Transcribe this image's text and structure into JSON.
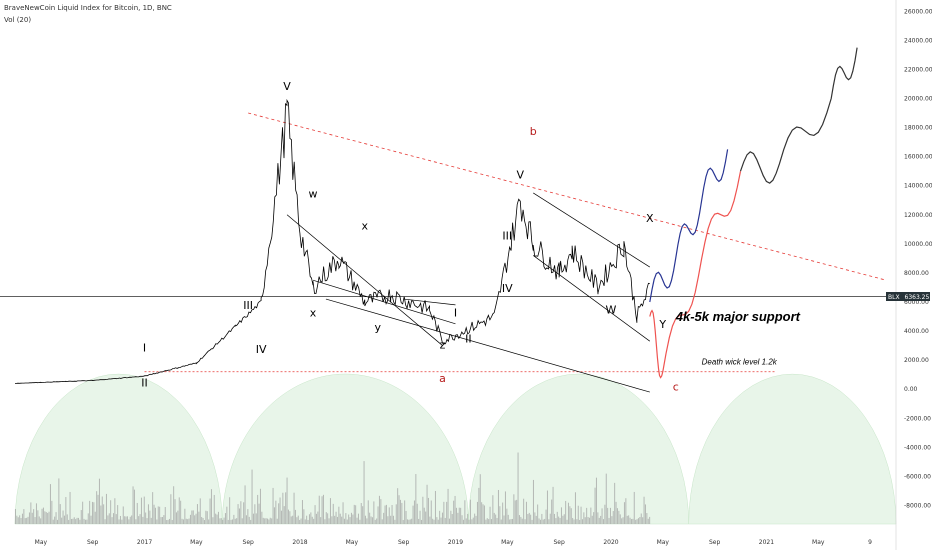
{
  "header": {
    "title": "BraveNewCoin Liquid Index for Bitcoin, 1D, BNC",
    "indicator": "Vol (20)"
  },
  "price_badge": {
    "symbol": "BLX",
    "value": "6363.25"
  },
  "chart_data": {
    "type": "line",
    "title": "BraveNewCoin Liquid Index for Bitcoin, 1D, BNC",
    "y_ticks": [
      "26000.00",
      "24000.00",
      "22000.00",
      "20000.00",
      "18000.00",
      "16000.00",
      "14000.00",
      "12000.00",
      "10000.00",
      "8000.00",
      "6000.00",
      "4000.00",
      "2000.00",
      "0.00",
      "-2000.00",
      "-4000.00",
      "-6000.00",
      "-8000.00"
    ],
    "x_ticks": [
      "May",
      "Sep",
      "2017",
      "May",
      "Sep",
      "2018",
      "May",
      "Sep",
      "2019",
      "May",
      "Sep",
      "2020",
      "May",
      "Sep",
      "2021",
      "May",
      "9"
    ],
    "ylim": [
      -9000,
      26500
    ],
    "current_price": 6363.25,
    "series": [
      {
        "name": "BLX",
        "x": [
          "2016-03",
          "2016-09",
          "2017-01",
          "2017-05",
          "2017-08",
          "2017-10",
          "2017-12",
          "2018-01",
          "2018-02",
          "2018-04",
          "2018-06",
          "2018-08",
          "2018-11",
          "2018-12",
          "2019-04",
          "2019-06",
          "2019-07",
          "2019-09",
          "2019-10",
          "2019-12",
          "2020-02",
          "2020-03",
          "2020-04"
        ],
        "values": [
          400,
          600,
          900,
          1800,
          4300,
          6000,
          19000,
          11000,
          7000,
          9000,
          6000,
          6500,
          5500,
          3300,
          5000,
          13000,
          10000,
          8000,
          9500,
          7000,
          10000,
          5000,
          7000
        ]
      }
    ],
    "projections": [
      {
        "name": "blue",
        "x": [
          "2020-04",
          "2020-06",
          "2020-08",
          "2020-10"
        ],
        "values": [
          6000,
          9000,
          13000,
          16500
        ]
      },
      {
        "name": "red",
        "x": [
          "2020-04",
          "2020-05",
          "2020-08",
          "2020-11"
        ],
        "values": [
          5000,
          1200,
          9000,
          15000
        ]
      },
      {
        "name": "black",
        "x": [
          "2020-11",
          "2021-02",
          "2021-06",
          "2021-08"
        ],
        "values": [
          15000,
          15500,
          20000,
          23500
        ]
      }
    ],
    "annotations": {
      "support": "4k-5k major support",
      "death_wick": "Death wick level 1.2k",
      "waves": [
        "I",
        "II",
        "III",
        "IV",
        "V",
        "w",
        "x",
        "y",
        "x",
        "z",
        "I",
        "II",
        "III",
        "IV",
        "V",
        "W",
        "X",
        "Y",
        "a",
        "b",
        "c"
      ]
    },
    "colors": {
      "price": "#000000",
      "resistance": "#e53935",
      "projection_blue": "#283593",
      "projection_red": "#ef5350",
      "volume_bg": "#e8f5e9"
    },
    "grid": false
  }
}
